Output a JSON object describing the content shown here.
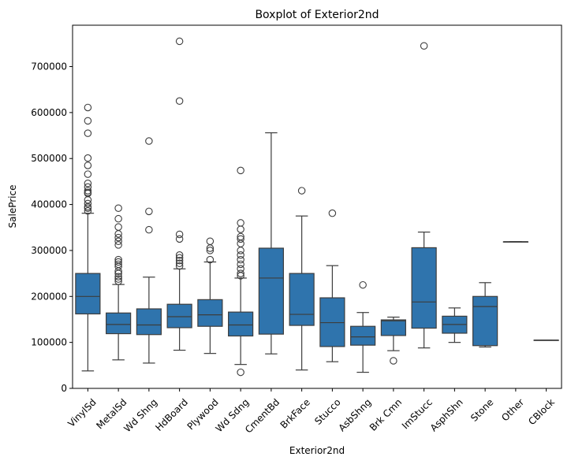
{
  "chart_data": {
    "type": "boxplot",
    "title": "Boxplot of Exterior2nd",
    "xlabel": "Exterior2nd",
    "ylabel": "SalePrice",
    "ylim": [
      0,
      790000
    ],
    "yticks": [
      0,
      100000,
      200000,
      300000,
      400000,
      500000,
      600000,
      700000
    ],
    "grid": false,
    "box_color": "#2f74ad",
    "line_color": "#3d3d3d",
    "categories": [
      "VinylSd",
      "MetalSd",
      "Wd Shng",
      "HdBoard",
      "Plywood",
      "Wd Sdng",
      "CmentBd",
      "BrkFace",
      "Stucco",
      "AsbShng",
      "Brk Cmn",
      "ImStucc",
      "AsphShn",
      "Stone",
      "Other",
      "CBlock"
    ],
    "boxes": [
      {
        "category": "VinylSd",
        "whisker_low": 38000,
        "q1": 162000,
        "median": 200000,
        "q3": 250000,
        "whisker_high": 381000,
        "outliers": [
          611000,
          582000,
          555000,
          501000,
          485000,
          466000,
          446000,
          438000,
          430000,
          426000,
          424000,
          410000,
          402000,
          395000,
          392000,
          386000
        ]
      },
      {
        "category": "MetalSd",
        "whisker_low": 62000,
        "q1": 119000,
        "median": 139000,
        "q3": 164000,
        "whisker_high": 226000,
        "outliers": [
          392000,
          369000,
          351000,
          336000,
          328000,
          320000,
          312000,
          280000,
          275000,
          270000,
          265000,
          255000,
          250000,
          243000,
          238000,
          233000
        ]
      },
      {
        "category": "Wd Shng",
        "whisker_low": 55000,
        "q1": 117000,
        "median": 138000,
        "q3": 173000,
        "whisker_high": 242000,
        "outliers": [
          538000,
          385000,
          345000
        ]
      },
      {
        "category": "HdBoard",
        "whisker_low": 83000,
        "q1": 132000,
        "median": 156000,
        "q3": 183000,
        "whisker_high": 260000,
        "outliers": [
          755000,
          625000,
          335000,
          325000,
          290000,
          284000,
          278000,
          272000,
          266000
        ]
      },
      {
        "category": "Plywood",
        "whisker_low": 76000,
        "q1": 135000,
        "median": 160000,
        "q3": 193000,
        "whisker_high": 275000,
        "outliers": [
          320000,
          305000,
          300000,
          280000
        ]
      },
      {
        "category": "Wd Sdng",
        "whisker_low": 52000,
        "q1": 114000,
        "median": 138000,
        "q3": 166000,
        "whisker_high": 240000,
        "outliers": [
          474000,
          360000,
          346000,
          330000,
          325000,
          315000,
          300000,
          290000,
          280000,
          270000,
          260000,
          250000,
          245000,
          35000
        ]
      },
      {
        "category": "CmentBd",
        "whisker_low": 75000,
        "q1": 118000,
        "median": 240000,
        "q3": 305000,
        "whisker_high": 556000,
        "outliers": []
      },
      {
        "category": "BrkFace",
        "whisker_low": 40000,
        "q1": 137000,
        "median": 161000,
        "q3": 250000,
        "whisker_high": 375000,
        "outliers": [
          430000
        ]
      },
      {
        "category": "Stucco",
        "whisker_low": 58000,
        "q1": 91000,
        "median": 143000,
        "q3": 197000,
        "whisker_high": 267000,
        "outliers": [
          381000
        ]
      },
      {
        "category": "AsbShng",
        "whisker_low": 35000,
        "q1": 94000,
        "median": 112000,
        "q3": 135000,
        "whisker_high": 165000,
        "outliers": [
          225000
        ]
      },
      {
        "category": "Brk Cmn",
        "whisker_low": 82000,
        "q1": 115000,
        "median": 147000,
        "q3": 149000,
        "whisker_high": 155000,
        "outliers": [
          60000
        ]
      },
      {
        "category": "ImStucc",
        "whisker_low": 88000,
        "q1": 131000,
        "median": 188000,
        "q3": 306000,
        "whisker_high": 340000,
        "outliers": [
          745000
        ]
      },
      {
        "category": "AsphShn",
        "whisker_low": 100000,
        "q1": 120000,
        "median": 139000,
        "q3": 157000,
        "whisker_high": 175000,
        "outliers": []
      },
      {
        "category": "Stone",
        "whisker_low": 90000,
        "q1": 93000,
        "median": 178000,
        "q3": 200000,
        "whisker_high": 230000,
        "outliers": []
      },
      {
        "category": "Other",
        "whisker_low": 319000,
        "q1": 319000,
        "median": 319000,
        "q3": 319000,
        "whisker_high": 319000,
        "outliers": []
      },
      {
        "category": "CBlock",
        "whisker_low": 105000,
        "q1": 105000,
        "median": 105000,
        "q3": 105000,
        "whisker_high": 105000,
        "outliers": []
      }
    ]
  }
}
